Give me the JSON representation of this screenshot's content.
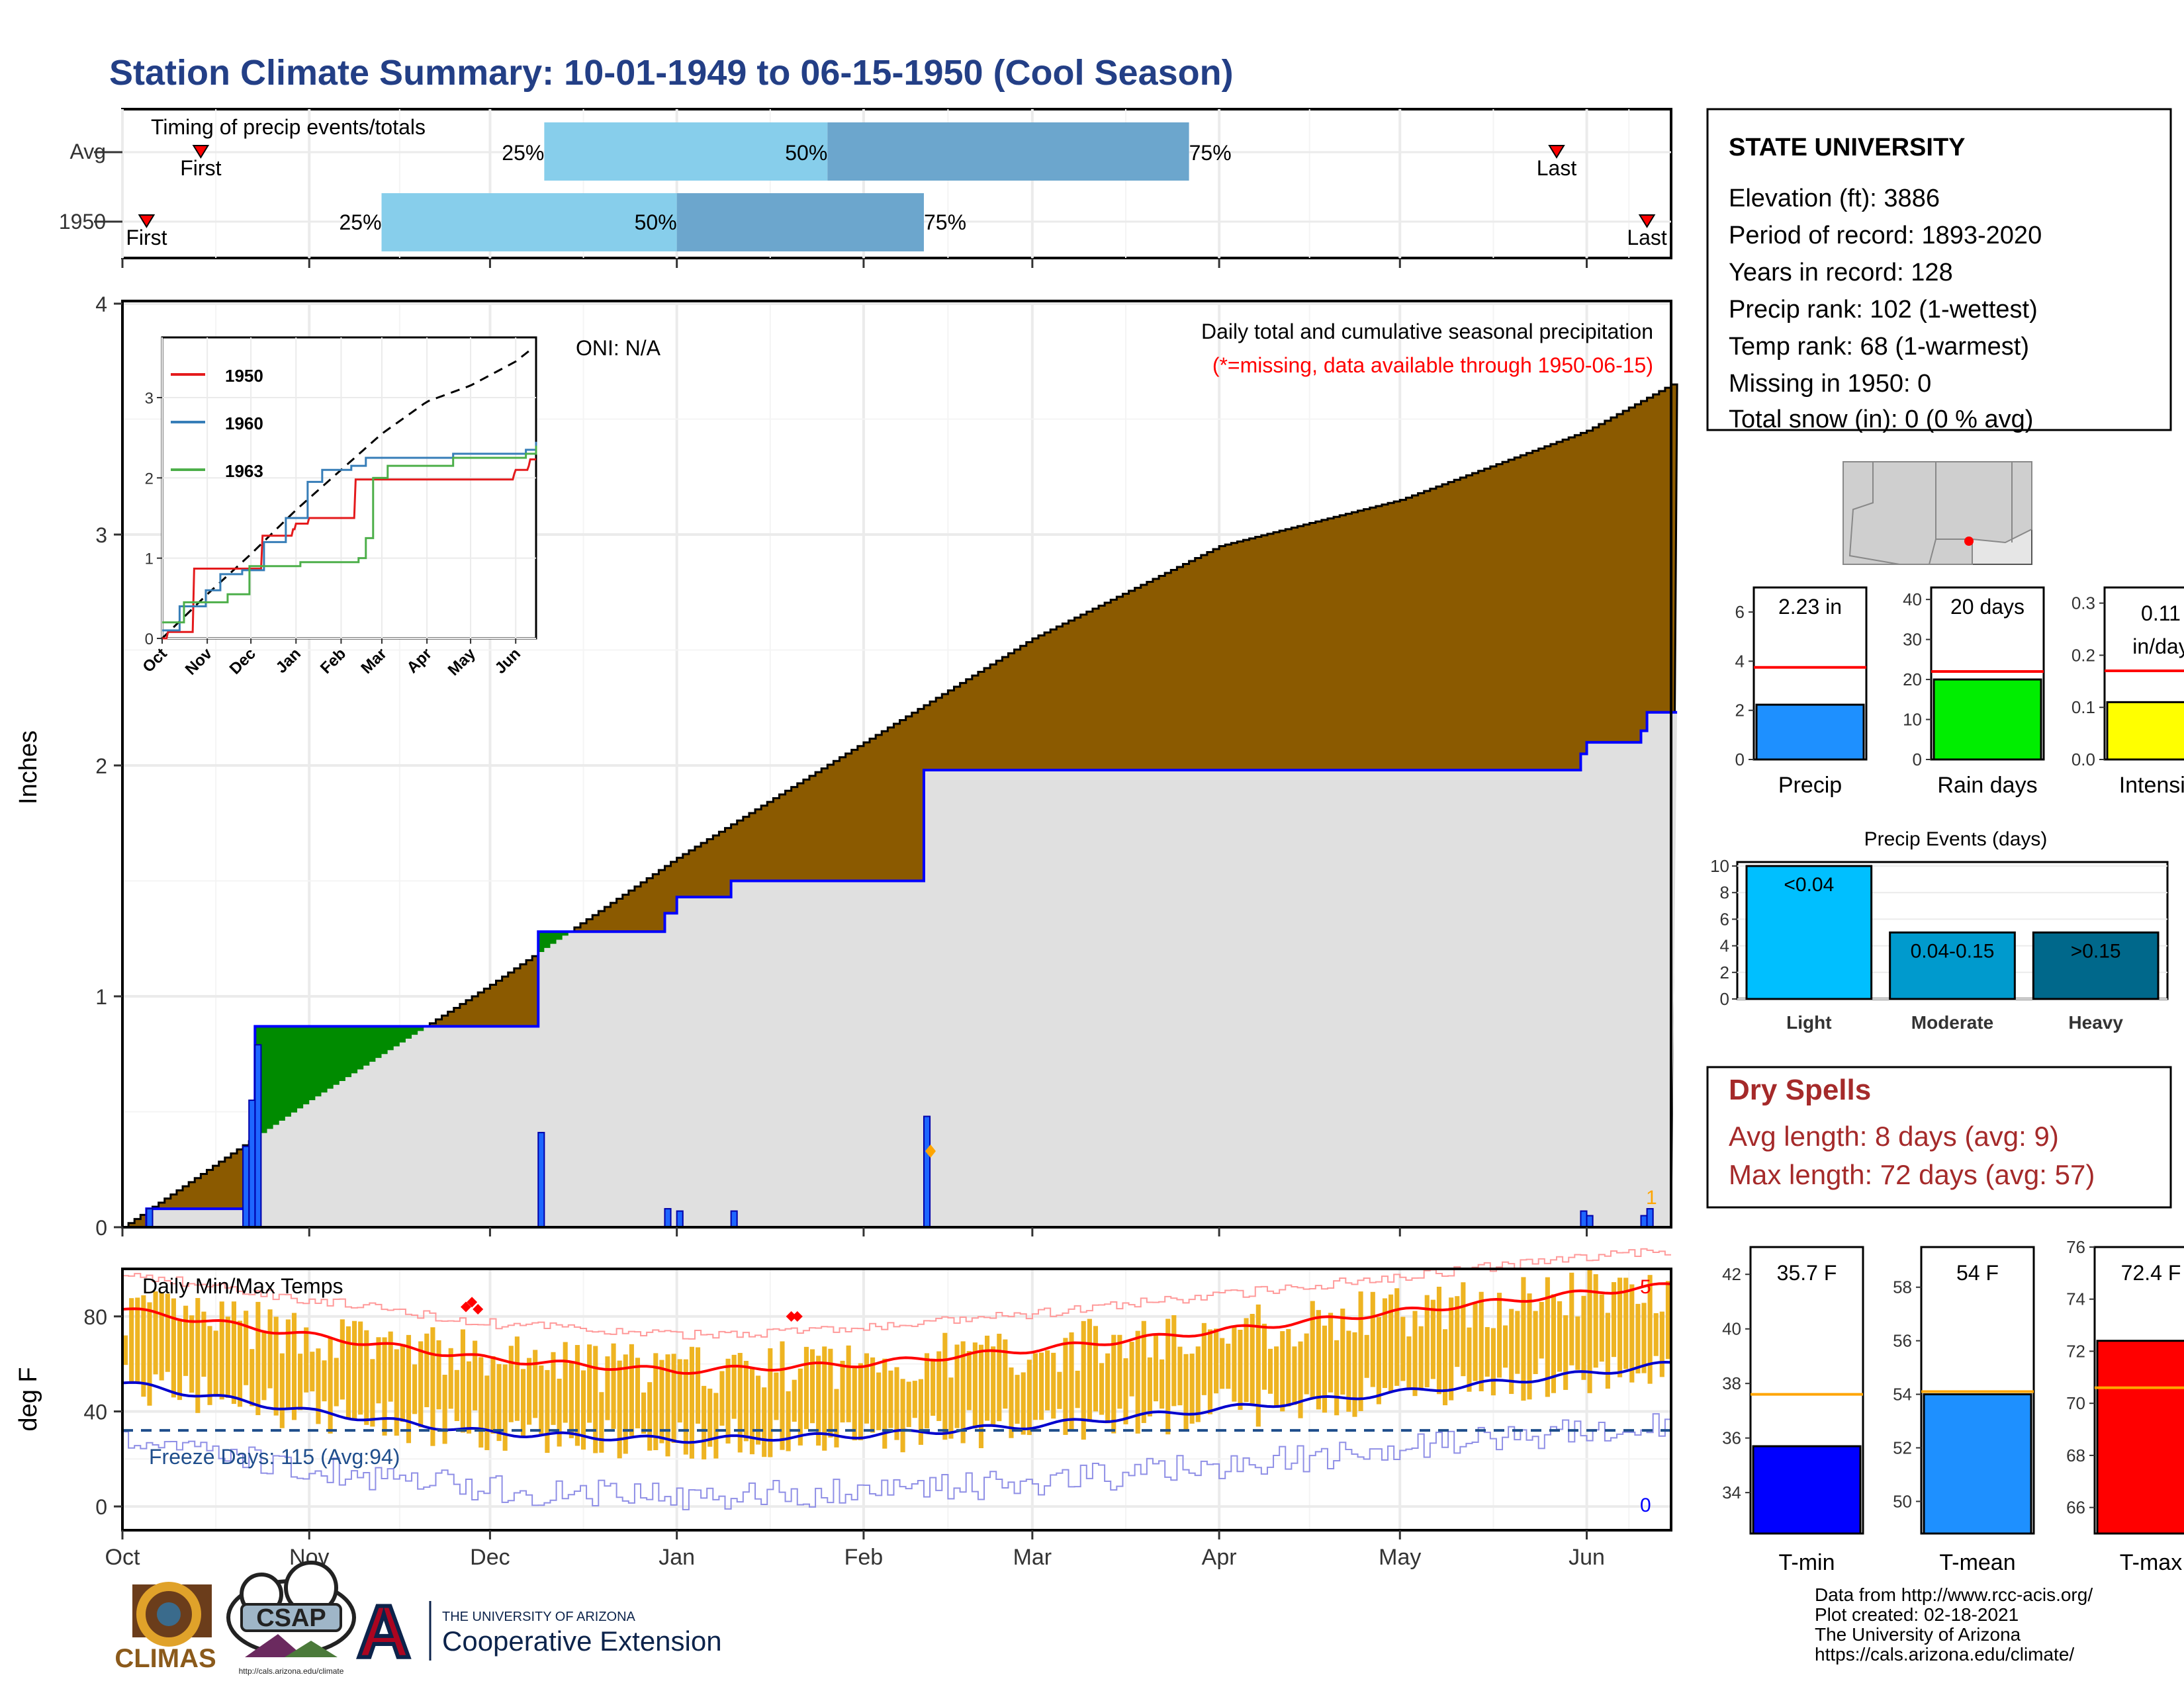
{
  "title": "Station Climate Summary: 10-01-1949 to 06-15-1950 (Cool Season)",
  "colors": {
    "title": "#233f86",
    "quartile_light": "#87ceeb",
    "quartile_dark": "#6ca6cd",
    "precip_cum_area": "#8b5a00",
    "precip_normal_area": "#e0e0e0",
    "precip_line": "#0000ff",
    "daily_bar": "#1e66ff",
    "surplus_green": "#008b00",
    "temp_bar": "#eeb422",
    "tmax_line": "#ff0000",
    "tmin_line": "#0000cd",
    "dry_spell_text": "#a52a2a",
    "missing_note": "#ff0000"
  },
  "timing": {
    "title": "Timing of precip events/totals",
    "rows": [
      {
        "label": "Avg",
        "first_date": "1949-10-14",
        "q25": "1949-12-10",
        "q50": "1950-01-26",
        "q75": "1950-03-27",
        "last_date": "1950-05-27"
      },
      {
        "label": "1950",
        "first_date": "1949-10-05",
        "q25": "1949-11-13",
        "q50": "1950-01-01",
        "q75": "1950-02-11",
        "last_date": "1950-06-11"
      }
    ],
    "labels": {
      "first": "First",
      "last": "Last",
      "p25": "25%",
      "p50": "50%",
      "p75": "75%"
    }
  },
  "months": [
    "Oct",
    "Nov",
    "Dec",
    "Jan",
    "Feb",
    "Mar",
    "Apr",
    "May",
    "Jun"
  ],
  "precip_main": {
    "ylabel": "Inches",
    "yticks": [
      "0",
      "1",
      "2",
      "3",
      "4"
    ],
    "oni": "ONI: N/A",
    "subtitle": "Daily total and cumulative seasonal precipitation",
    "missing_note": "(*=missing, data available through 1950-06-15)",
    "count_label": "1"
  },
  "inset": {
    "yticks": [
      "0",
      "1",
      "2",
      "3"
    ],
    "months": [
      "Oct",
      "Nov",
      "Dec",
      "Jan",
      "Feb",
      "Mar",
      "Apr",
      "May",
      "Jun"
    ],
    "legend": [
      "1950",
      "1960",
      "1963"
    ],
    "legend_colors": [
      "#e41a1c",
      "#377eb8",
      "#4daf4a"
    ]
  },
  "station": {
    "name": "STATE UNIVERSITY",
    "lines": [
      "Elevation (ft): 3886",
      "Period of record: 1893-2020",
      "Years in record: 128",
      "Precip rank: 102 (1-wettest)",
      "Temp rank: 68 (1-warmest)",
      "Missing in 1950: 0",
      "Total snow (in): 0 (0 % avg)"
    ]
  },
  "summary_bars": [
    {
      "name": "Precip",
      "value_label": "2.23 in",
      "value": 2.23,
      "avg": 3.75,
      "yticks": [
        "0",
        "2",
        "4",
        "6"
      ],
      "ymax": 7.0,
      "tick_vals": [
        0,
        2,
        4,
        6
      ],
      "color": "#1e90ff"
    },
    {
      "name": "Rain days",
      "value_label": "20 days",
      "value": 20,
      "avg": 22,
      "yticks": [
        "0",
        "10",
        "20",
        "30",
        "40"
      ],
      "ymax": 43,
      "tick_vals": [
        0,
        10,
        20,
        30,
        40
      ],
      "color": "#00ee00"
    },
    {
      "name": "Intensity",
      "value_label": "0.11 in/day",
      "value_line1": "0.11",
      "value_line2": "in/day",
      "value": 0.11,
      "avg": 0.17,
      "yticks": [
        "0.0",
        "0.1",
        "0.2",
        "0.3"
      ],
      "ymax": 0.33,
      "tick_vals": [
        0,
        0.1,
        0.2,
        0.3
      ],
      "color": "#ffff00"
    }
  ],
  "precip_events": {
    "title": "Precip Events (days)",
    "yticks": [
      "0",
      "2",
      "4",
      "6",
      "8",
      "10"
    ],
    "categories": [
      "Light",
      "Moderate",
      "Heavy"
    ],
    "bar_labels": [
      "<0.04",
      "0.04-0.15",
      ">0.15"
    ],
    "values": [
      10,
      5,
      5
    ],
    "colors": [
      "#00bfff",
      "#009acd",
      "#00688b"
    ]
  },
  "dry_spells": {
    "title": "Dry Spells",
    "avg_length": "Avg length: 8 days (avg: 9)",
    "max_length": "Max length: 72 days (avg: 57)"
  },
  "temps": {
    "title": "Daily Min/Max Temps",
    "ylabel": "deg F",
    "yticks": [
      "0",
      "40",
      "80"
    ],
    "freeze": "Freeze Days: 115 (Avg:94)",
    "count_max": "5",
    "count_min": "0"
  },
  "temp_bars": [
    {
      "name": "T-min",
      "value_label": "35.7 F",
      "value": 35.7,
      "avg": 37.6,
      "ymin": 32.5,
      "ymax": 43.0,
      "yticks": [
        "34",
        "36",
        "38",
        "40",
        "42"
      ],
      "tick_vals": [
        34,
        36,
        38,
        40,
        42
      ],
      "color": "#0000ff"
    },
    {
      "name": "T-mean",
      "value_label": "54 F",
      "value": 54.0,
      "avg": 54.1,
      "ymin": 48.8,
      "ymax": 59.5,
      "yticks": [
        "50",
        "52",
        "54",
        "56",
        "58"
      ],
      "tick_vals": [
        50,
        52,
        54,
        56,
        58
      ],
      "color": "#1e90ff"
    },
    {
      "name": "T-max",
      "value_label": "72.4 F",
      "value": 72.4,
      "avg": 70.6,
      "ymin": 65.0,
      "ymax": 76.0,
      "yticks": [
        "66",
        "68",
        "70",
        "72",
        "74",
        "76"
      ],
      "tick_vals": [
        66,
        68,
        70,
        72,
        74,
        76
      ],
      "color": "#ff0000"
    }
  ],
  "footer": {
    "lines": [
      "Data from http://www.rcc-acis.org/",
      "Plot created: 02-18-2021",
      "The University of Arizona",
      "https://cals.arizona.edu/climate/"
    ],
    "logo1": "CLIMAS",
    "logo2": "CSAP",
    "logo2_url": "http://cals.arizona.edu/climate",
    "ua_small": "THE UNIVERSITY OF ARIZONA",
    "ua_big": "Cooperative Extension",
    "ua_letter": "A"
  },
  "chart_data": [
    {
      "type": "area",
      "title": "Daily total and cumulative seasonal precipitation",
      "ylabel": "Inches",
      "ylim": [
        0,
        4
      ],
      "x_range": [
        "1949-10-01",
        "1950-06-15"
      ],
      "series": [
        {
          "name": "Average cumulative",
          "x": [
            "1949-10-01",
            "1949-11-01",
            "1949-12-01",
            "1950-01-01",
            "1950-02-01",
            "1950-03-01",
            "1950-04-01",
            "1950-05-01",
            "1950-06-01",
            "1950-06-15"
          ],
          "values": [
            0.0,
            0.55,
            1.05,
            1.6,
            2.1,
            2.55,
            2.95,
            3.15,
            3.45,
            3.65
          ]
        },
        {
          "name": "1950 cumulative",
          "x": [
            "1949-10-01",
            "1949-10-05",
            "1949-10-22",
            "1949-10-23",
            "1949-12-08",
            "1949-12-09",
            "1949-12-30",
            "1950-01-01",
            "1950-01-10",
            "1950-02-10",
            "1950-02-11",
            "1950-05-31",
            "1950-06-01",
            "1950-06-10",
            "1950-06-11",
            "1950-06-15"
          ],
          "values": [
            0.0,
            0.08,
            0.08,
            0.87,
            0.87,
            1.28,
            1.36,
            1.43,
            1.5,
            1.5,
            1.98,
            2.05,
            2.1,
            2.15,
            2.23,
            2.23
          ]
        }
      ]
    },
    {
      "type": "bar",
      "title": "Daily Min/Max Temps",
      "ylabel": "deg F",
      "ylim": [
        -10,
        100
      ],
      "x_range": [
        "1949-10-01",
        "1950-06-15"
      ],
      "series": [
        {
          "name": "Avg Tmax",
          "x": [
            "1949-10-01",
            "1949-11-01",
            "1949-12-01",
            "1950-01-01",
            "1950-02-01",
            "1950-03-01",
            "1950-04-01",
            "1950-05-01",
            "1950-06-01",
            "1950-06-15"
          ],
          "values": [
            83,
            72,
            62,
            57,
            60,
            66,
            74,
            82,
            90,
            93
          ]
        },
        {
          "name": "Avg Tmin",
          "x": [
            "1949-10-01",
            "1949-11-01",
            "1949-12-01",
            "1950-01-01",
            "1950-02-01",
            "1950-03-01",
            "1950-04-01",
            "1950-05-01",
            "1950-06-01",
            "1950-06-15"
          ],
          "values": [
            52,
            40,
            31,
            28,
            30,
            34,
            41,
            48,
            56,
            60
          ]
        }
      ],
      "freeze_threshold": 32
    }
  ]
}
